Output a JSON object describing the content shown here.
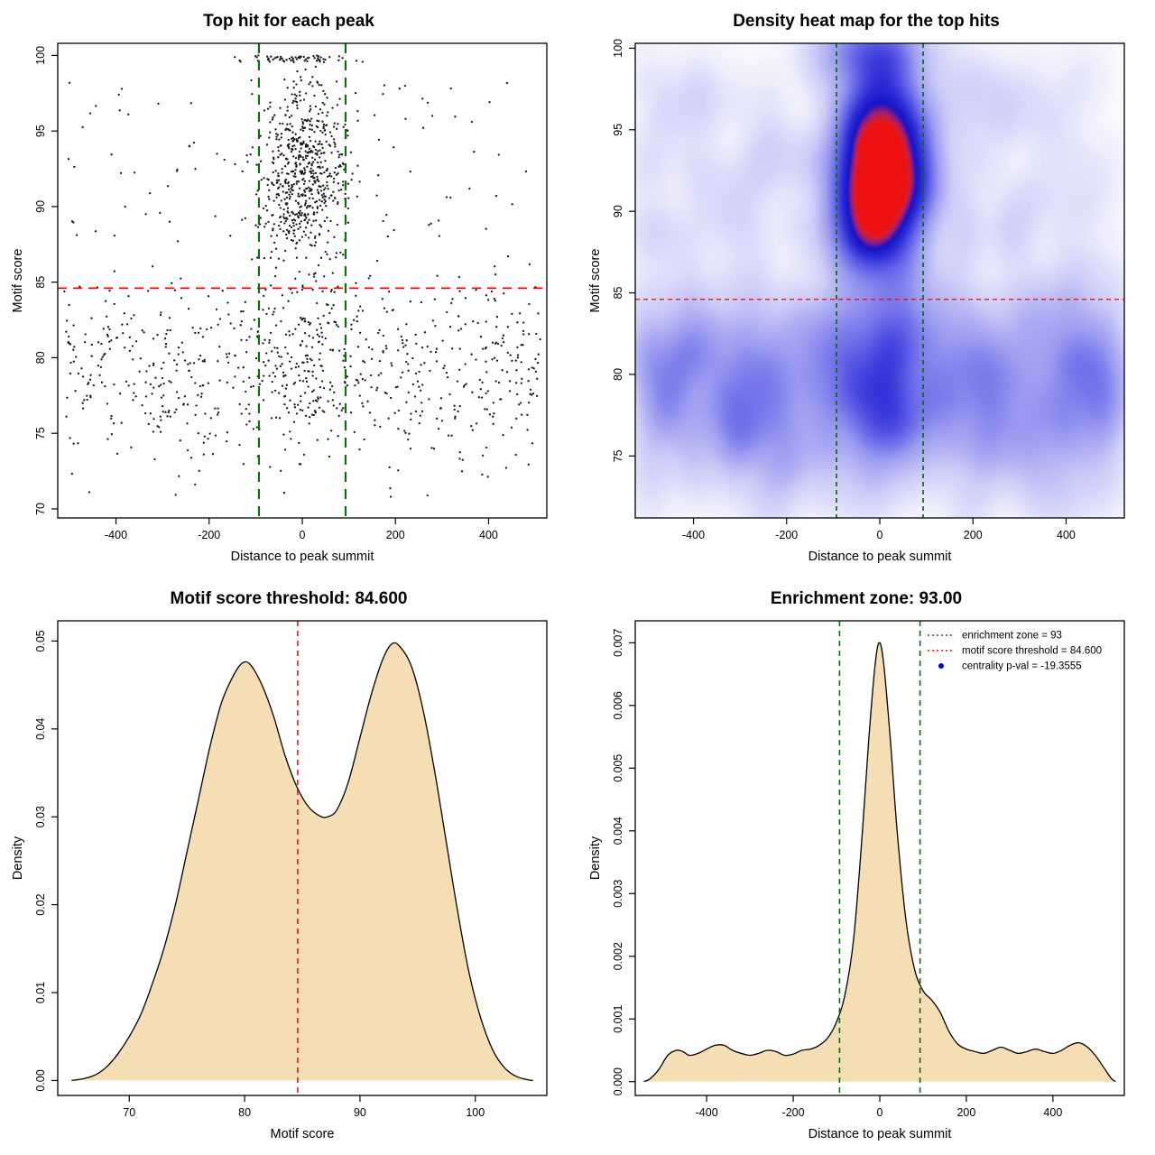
{
  "colors": {
    "threshold_line": "#ff0000",
    "zone_line": "#0a6e0a",
    "density_fill": "#f5deb3",
    "curve_stroke": "#000000",
    "point_color": "#000000",
    "heat_low": "#ffffff",
    "heat_mid": "#4444dd",
    "heat_high": "#ee1111",
    "legend_point": "#0000cd"
  },
  "reference": {
    "motif_score_threshold": 84.6,
    "enrichment_zone_half_width": 93,
    "centrality_p_val": -19.3555
  },
  "chart_data": [
    {
      "id": "scatter",
      "type": "scatter",
      "title": "Top hit for each peak",
      "xlabel": "Distance to peak summit",
      "ylabel": "Motif score",
      "xlim": [
        -525,
        525
      ],
      "ylim": [
        69.4,
        100.8
      ],
      "xticks": [
        -400,
        -200,
        0,
        200,
        400
      ],
      "yticks": [
        70,
        75,
        80,
        85,
        90,
        95,
        100
      ],
      "hline": 84.6,
      "vlines": [
        -93,
        93
      ],
      "point_clusters": [
        {
          "name": "central-enriched",
          "n": 640,
          "x": {
            "dist": "normal",
            "mean": 0,
            "sd": 44,
            "min": -175,
            "max": 175
          },
          "y": {
            "dist": "normal",
            "mean": 92.2,
            "sd": 3.1,
            "min": 84.8,
            "max": 99.4
          }
        },
        {
          "name": "central-top-row",
          "n": 62,
          "x": {
            "dist": "normal",
            "mean": -5,
            "sd": 62,
            "min": -175,
            "max": 165
          },
          "y": {
            "dist": "uniform",
            "min": 99.55,
            "max": 100.0
          }
        },
        {
          "name": "central-low-tail",
          "n": 110,
          "x": {
            "dist": "normal",
            "mean": 0,
            "sd": 50,
            "min": -160,
            "max": 160
          },
          "y": {
            "dist": "uniform",
            "min": 76,
            "max": 84.8
          }
        },
        {
          "name": "background-low",
          "n": 700,
          "x": {
            "dist": "uniform",
            "min": -512,
            "max": 512
          },
          "y": {
            "dist": "normal",
            "mean": 79.2,
            "sd": 3.4,
            "min": 70,
            "max": 84.8
          }
        },
        {
          "name": "background-high",
          "n": 120,
          "x": {
            "dist": "uniform",
            "min": -512,
            "max": 512
          },
          "y": {
            "dist": "uniform",
            "min": 84.8,
            "max": 98.5
          }
        }
      ]
    },
    {
      "id": "heatmap",
      "type": "heatmap",
      "title": "Density heat map for the top hits",
      "xlabel": "Distance to peak summit",
      "ylabel": "Motif score",
      "xlim": [
        -525,
        525
      ],
      "ylim": [
        71.2,
        100.3
      ],
      "xticks": [
        -400,
        -200,
        0,
        200,
        400
      ],
      "yticks": [
        75,
        80,
        85,
        90,
        95,
        100
      ],
      "hline": 84.6,
      "vlines": [
        -93,
        93
      ],
      "kde_bandwidth": {
        "x": 30,
        "y": 1.3
      },
      "source": "top-hit points (same as scatter panel)"
    },
    {
      "id": "score_density",
      "type": "area",
      "title": "Motif score threshold: 84.600",
      "xlabel": "Motif score",
      "ylabel": "Density",
      "xlim": [
        63.8,
        106.2
      ],
      "ylim": [
        -0.0017,
        0.0523
      ],
      "xticks": [
        70,
        80,
        90,
        100
      ],
      "yticks": [
        0,
        0.01,
        0.02,
        0.03,
        0.04,
        0.05
      ],
      "ytick_labels": [
        "0.00",
        "0.01",
        "0.02",
        "0.03",
        "0.04",
        "0.05"
      ],
      "vline": 84.6,
      "x": [
        65,
        66,
        67,
        68,
        69,
        70,
        71,
        72,
        73,
        74,
        75,
        76,
        77,
        78,
        79,
        79.8,
        80.5,
        81.5,
        82.5,
        83.5,
        84.5,
        85.5,
        86.5,
        87.2,
        88,
        89,
        90,
        91,
        92,
        92.8,
        93.5,
        94.5,
        95.5,
        96.5,
        97.5,
        98.5,
        99.5,
        100.5,
        101.5,
        102.5,
        103.5,
        104.5,
        105
      ],
      "y": [
        0,
        0.0002,
        0.0006,
        0.0015,
        0.003,
        0.005,
        0.0075,
        0.011,
        0.015,
        0.02,
        0.026,
        0.032,
        0.038,
        0.043,
        0.046,
        0.0475,
        0.0473,
        0.045,
        0.0415,
        0.037,
        0.0335,
        0.0312,
        0.0301,
        0.03,
        0.0308,
        0.034,
        0.039,
        0.044,
        0.048,
        0.0497,
        0.0493,
        0.047,
        0.042,
        0.035,
        0.027,
        0.019,
        0.012,
        0.007,
        0.0035,
        0.0015,
        0.0005,
        0.0001,
        0
      ]
    },
    {
      "id": "distance_density",
      "type": "area",
      "title": "Enrichment zone: 93.00",
      "xlabel": "Distance to peak summit",
      "ylabel": "Density",
      "xlim": [
        -565,
        565
      ],
      "ylim": [
        -0.00022,
        0.00735
      ],
      "xticks": [
        -400,
        -200,
        0,
        200,
        400
      ],
      "yticks": [
        0,
        0.001,
        0.002,
        0.003,
        0.004,
        0.005,
        0.006,
        0.007
      ],
      "ytick_labels": [
        "0.000",
        "0.001",
        "0.002",
        "0.003",
        "0.004",
        "0.005",
        "0.006",
        "0.007"
      ],
      "vlines": [
        -93,
        93
      ],
      "x": [
        -545,
        -530,
        -510,
        -490,
        -470,
        -455,
        -440,
        -420,
        -400,
        -380,
        -360,
        -340,
        -320,
        -300,
        -280,
        -260,
        -240,
        -220,
        -200,
        -180,
        -160,
        -140,
        -120,
        -100,
        -80,
        -60,
        -40,
        -25,
        -10,
        0,
        10,
        25,
        40,
        60,
        80,
        100,
        120,
        140,
        160,
        180,
        200,
        220,
        240,
        260,
        280,
        300,
        320,
        340,
        360,
        380,
        400,
        420,
        440,
        460,
        480,
        500,
        520,
        535,
        545
      ],
      "y": [
        0,
        5e-05,
        0.0002,
        0.00042,
        0.0005,
        0.00048,
        0.00042,
        0.00045,
        0.00052,
        0.00058,
        0.00058,
        0.0005,
        0.00045,
        0.00042,
        0.00045,
        0.0005,
        0.00048,
        0.00042,
        0.00044,
        0.0005,
        0.00052,
        0.00058,
        0.0007,
        0.00095,
        0.0014,
        0.0023,
        0.004,
        0.0055,
        0.0067,
        0.007,
        0.0066,
        0.0054,
        0.004,
        0.0026,
        0.0018,
        0.00145,
        0.0013,
        0.0011,
        0.0008,
        0.0006,
        0.00052,
        0.00048,
        0.00045,
        0.0005,
        0.00055,
        0.0005,
        0.00045,
        0.00048,
        0.00052,
        0.00048,
        0.00045,
        0.0005,
        0.00058,
        0.00062,
        0.00055,
        0.0004,
        0.0002,
        5e-05,
        0
      ],
      "legend": [
        {
          "label": "enrichment zone = 93",
          "type": "line",
          "color": "#0a6e0a"
        },
        {
          "label": "motif score threshold = 84.600",
          "type": "line",
          "color": "#ff0000"
        },
        {
          "label": "centrality p-val = -19.3555",
          "type": "point",
          "color": "#0000cd"
        }
      ]
    }
  ]
}
